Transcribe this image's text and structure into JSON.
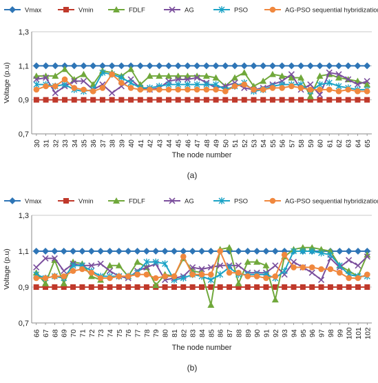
{
  "chart_data": [
    {
      "type": "line",
      "panel_label": "(a)",
      "xlabel": "The node number",
      "ylabel": "Voltage (p.u)",
      "ylim": [
        0.7,
        1.3
      ],
      "yticks": [
        "0,7",
        "0,9",
        "1,1",
        "1,3"
      ],
      "grid": "horizontal",
      "legend": "top",
      "categories": [
        "30",
        "31",
        "32",
        "33",
        "34",
        "35",
        "36",
        "37",
        "38",
        "39",
        "40",
        "41",
        "42",
        "43",
        "44",
        "45",
        "46",
        "47",
        "48",
        "49",
        "50",
        "51",
        "52",
        "53",
        "54",
        "55",
        "56",
        "57",
        "58",
        "59",
        "60",
        "61",
        "62",
        "63",
        "64",
        "65"
      ],
      "series": [
        {
          "name": "Vmax",
          "color": "#2e75b6",
          "marker": "diamond",
          "values": [
            1.1,
            1.1,
            1.1,
            1.1,
            1.1,
            1.1,
            1.1,
            1.1,
            1.1,
            1.1,
            1.1,
            1.1,
            1.1,
            1.1,
            1.1,
            1.1,
            1.1,
            1.1,
            1.1,
            1.1,
            1.1,
            1.1,
            1.1,
            1.1,
            1.1,
            1.1,
            1.1,
            1.1,
            1.1,
            1.1,
            1.1,
            1.1,
            1.1,
            1.1,
            1.1,
            1.1
          ]
        },
        {
          "name": "Vmin",
          "color": "#c0392b",
          "marker": "square",
          "values": [
            0.9,
            0.9,
            0.9,
            0.9,
            0.9,
            0.9,
            0.9,
            0.9,
            0.9,
            0.9,
            0.9,
            0.9,
            0.9,
            0.9,
            0.9,
            0.9,
            0.9,
            0.9,
            0.9,
            0.9,
            0.9,
            0.9,
            0.9,
            0.9,
            0.9,
            0.9,
            0.9,
            0.9,
            0.9,
            0.9,
            0.9,
            0.9,
            0.9,
            0.9,
            0.9,
            0.9
          ]
        },
        {
          "name": "FDLF",
          "color": "#70a83b",
          "marker": "triangle",
          "values": [
            1.04,
            1.04,
            1.04,
            1.08,
            1.02,
            1.05,
            0.99,
            1.07,
            1.06,
            1.04,
            1.08,
            0.99,
            1.04,
            1.04,
            1.04,
            1.04,
            1.04,
            1.04,
            1.04,
            1.03,
            0.98,
            1.03,
            1.06,
            0.98,
            1.01,
            1.05,
            1.04,
            1.03,
            1.03,
            0.92,
            1.04,
            1.05,
            1.03,
            1.02,
            1.01,
            0.99
          ]
        },
        {
          "name": "AG",
          "color": "#7b4f9d",
          "marker": "x",
          "values": [
            1.02,
            1.03,
            0.94,
            0.98,
            1.01,
            1.01,
            0.96,
            0.99,
            0.94,
            0.98,
            1.02,
            0.97,
            0.96,
            0.97,
            1.01,
            1.02,
            1.02,
            1.03,
            1.0,
            0.97,
            0.98,
            1.0,
            0.97,
            0.96,
            0.97,
            0.99,
            1.01,
            1.05,
            0.96,
            0.99,
            0.93,
            1.06,
            1.05,
            1.02,
            0.99,
            1.01
          ]
        },
        {
          "name": "PSO",
          "color": "#1ba3c6",
          "marker": "asterisk",
          "values": [
            0.99,
            0.99,
            0.98,
            0.99,
            0.96,
            0.95,
            0.96,
            1.06,
            1.05,
            1.03,
            1.0,
            0.97,
            0.97,
            0.98,
            0.99,
            0.99,
            0.99,
            0.99,
            0.99,
            0.99,
            0.96,
            0.98,
            1.0,
            0.95,
            0.96,
            0.98,
            0.99,
            0.99,
            0.99,
            0.95,
            0.99,
            1.0,
            0.98,
            0.97,
            0.96,
            0.96
          ]
        },
        {
          "name": "AG-PSO sequential hybridization",
          "color": "#f0883e",
          "marker": "circle",
          "values": [
            0.96,
            0.98,
            0.98,
            1.02,
            0.97,
            0.96,
            0.95,
            0.97,
            1.05,
            1.0,
            0.97,
            0.96,
            0.96,
            0.96,
            0.96,
            0.96,
            0.96,
            0.96,
            0.96,
            0.96,
            0.95,
            0.98,
            0.99,
            0.96,
            0.96,
            0.97,
            0.97,
            0.98,
            0.97,
            0.96,
            0.96,
            0.96,
            0.95,
            0.96,
            0.95,
            0.95
          ]
        }
      ]
    },
    {
      "type": "line",
      "panel_label": "(b)",
      "xlabel": "The node number",
      "ylabel": "Voltage (p.u)",
      "ylim": [
        0.7,
        1.3
      ],
      "yticks": [
        "0,7",
        "0,9",
        "1,1",
        "1,3"
      ],
      "grid": "horizontal",
      "legend": "top",
      "categories": [
        "66",
        "67",
        "68",
        "69",
        "70",
        "71",
        "72",
        "73",
        "74",
        "75",
        "76",
        "77",
        "78",
        "79",
        "80",
        "81",
        "82",
        "83",
        "84",
        "85",
        "86",
        "87",
        "88",
        "89",
        "90",
        "91",
        "92",
        "93",
        "94",
        "95",
        "96",
        "97",
        "98",
        "99",
        "100",
        "101",
        "102"
      ],
      "series": [
        {
          "name": "Vmax",
          "color": "#2e75b6",
          "marker": "diamond",
          "values": [
            1.1,
            1.1,
            1.1,
            1.1,
            1.1,
            1.1,
            1.1,
            1.1,
            1.1,
            1.1,
            1.1,
            1.1,
            1.1,
            1.1,
            1.1,
            1.1,
            1.1,
            1.1,
            1.1,
            1.1,
            1.1,
            1.1,
            1.1,
            1.1,
            1.1,
            1.1,
            1.1,
            1.1,
            1.1,
            1.1,
            1.1,
            1.1,
            1.1,
            1.1,
            1.1,
            1.1,
            1.1
          ]
        },
        {
          "name": "Vmin",
          "color": "#c0392b",
          "marker": "square",
          "values": [
            0.9,
            0.9,
            0.9,
            0.9,
            0.9,
            0.9,
            0.9,
            0.9,
            0.9,
            0.9,
            0.9,
            0.9,
            0.9,
            0.9,
            0.9,
            0.9,
            0.9,
            0.9,
            0.9,
            0.9,
            0.9,
            0.9,
            0.9,
            0.9,
            0.9,
            0.9,
            0.9,
            0.9,
            0.9,
            0.9,
            0.9,
            0.9,
            0.9,
            0.9,
            0.9,
            0.9,
            0.9
          ]
        },
        {
          "name": "FDLF",
          "color": "#70a83b",
          "marker": "triangle",
          "values": [
            0.98,
            0.92,
            1.05,
            0.92,
            1.04,
            1.03,
            0.96,
            0.94,
            1.02,
            1.02,
            0.96,
            1.04,
            1.01,
            0.91,
            0.97,
            0.96,
            1.06,
            0.99,
            0.98,
            0.8,
            1.11,
            1.12,
            0.92,
            1.04,
            1.04,
            1.02,
            0.83,
            1.07,
            1.11,
            1.12,
            1.12,
            1.11,
            1.1,
            1.02,
            0.99,
            0.96,
            1.08
          ]
        },
        {
          "name": "AG",
          "color": "#7b4f9d",
          "marker": "x",
          "values": [
            1.01,
            1.06,
            1.06,
            0.99,
            1.03,
            1.02,
            1.02,
            1.03,
            0.99,
            0.96,
            0.95,
            0.99,
            1.01,
            1.03,
            0.94,
            0.95,
            0.96,
            1.01,
            1.0,
            1.01,
            1.02,
            1.02,
            1.02,
            0.98,
            0.98,
            0.98,
            1.02,
            0.97,
            1.04,
            1.01,
            0.98,
            0.94,
            1.06,
            1.01,
            1.05,
            1.02,
            1.07
          ]
        },
        {
          "name": "PSO",
          "color": "#1ba3c6",
          "marker": "asterisk",
          "values": [
            0.97,
            0.95,
            0.96,
            0.95,
            1.02,
            1.02,
            0.99,
            0.96,
            0.96,
            0.96,
            0.96,
            0.98,
            1.04,
            1.04,
            1.03,
            0.94,
            0.95,
            0.97,
            0.96,
            0.94,
            0.97,
            1.01,
            0.97,
            0.97,
            0.97,
            0.97,
            0.95,
            0.99,
            1.1,
            1.1,
            1.1,
            1.09,
            1.08,
            1.02,
            0.97,
            0.96,
            0.96
          ]
        },
        {
          "name": "AG-PSO sequential hybridization",
          "color": "#f0883e",
          "marker": "circle",
          "values": [
            0.95,
            0.95,
            0.96,
            0.96,
            0.99,
            1.0,
            0.98,
            0.95,
            0.95,
            0.96,
            0.96,
            0.97,
            0.97,
            0.95,
            0.96,
            0.96,
            1.07,
            0.97,
            0.97,
            0.97,
            1.1,
            0.98,
            0.98,
            0.96,
            0.96,
            0.95,
            0.96,
            1.08,
            1.01,
            1.01,
            1.01,
            1.0,
            1.0,
            0.98,
            0.95,
            0.95,
            0.97
          ]
        }
      ]
    }
  ]
}
